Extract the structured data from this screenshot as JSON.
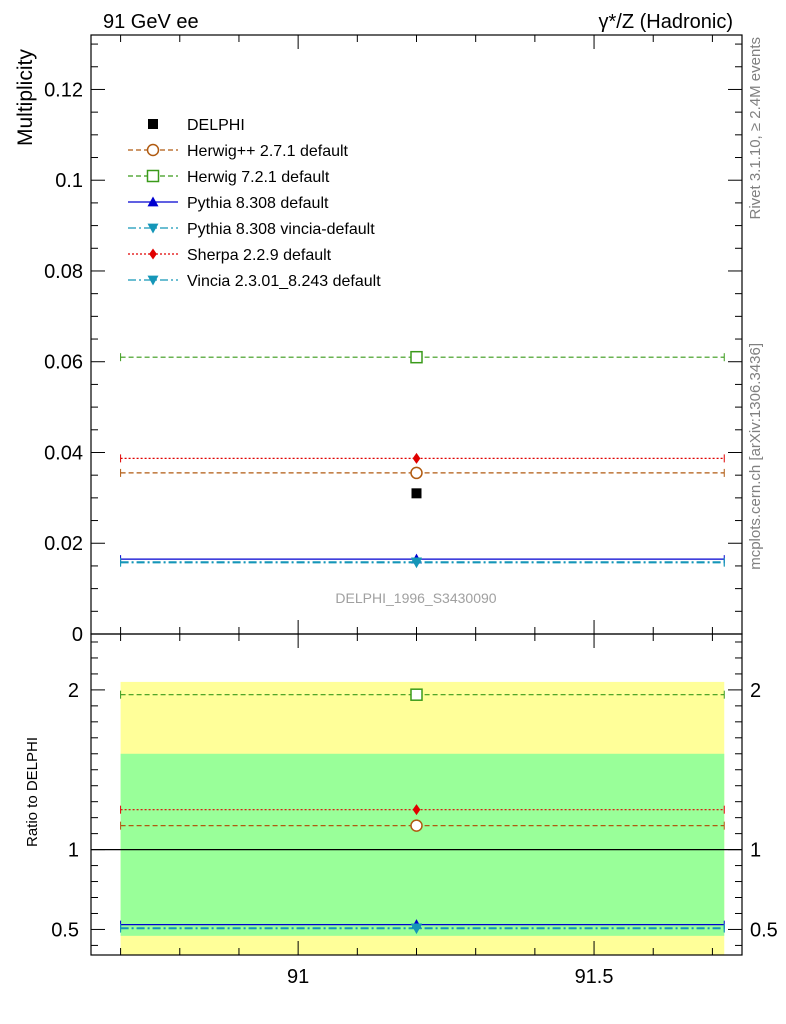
{
  "chart_data": {
    "type": "scatter",
    "title_left": "91 GeV ee",
    "title_right": "γ*/Z (Hadronic)",
    "ylabel": "Multiplicity",
    "ratio_ylabel": "Ratio to DELPHI",
    "analysis_label": "DELPHI_1996_S3430090",
    "side_label_top": "Rivet 3.1.10, ≥ 2.4M events",
    "side_label_bottom": "mcplots.cern.ch [arXiv:1306.3436]",
    "xlim": [
      90.65,
      91.75
    ],
    "bin": [
      90.7,
      91.72
    ],
    "point_x": 91.2,
    "x_ticks": [
      "91",
      "91.5"
    ],
    "x_tick_values": [
      91,
      91.5
    ],
    "main": {
      "ylim": [
        0,
        0.132
      ],
      "y_ticks": [
        "0",
        "0.02",
        "0.04",
        "0.06",
        "0.08",
        "0.1",
        "0.12"
      ],
      "y_tick_values": [
        0,
        0.02,
        0.04,
        0.06,
        0.08,
        0.1,
        0.12
      ]
    },
    "ratio": {
      "ylim": [
        0.34,
        2.35
      ],
      "y_ticks": [
        "0.5",
        "1",
        "2"
      ],
      "y_tick_values": [
        0.5,
        1,
        2
      ],
      "band_inner": [
        0.46,
        1.6
      ],
      "band_outer": [
        0.34,
        2.05
      ]
    },
    "data": {
      "name": "DELPHI",
      "value": 0.031,
      "color": "#000000"
    },
    "series": [
      {
        "name": "Herwig++ 2.7.1 default",
        "value": 0.0355,
        "ratio": 1.15,
        "color": "#b05a10",
        "marker": "circle-open",
        "dash": "5,3"
      },
      {
        "name": "Herwig 7.2.1 default",
        "value": 0.061,
        "ratio": 1.97,
        "color": "#3a9a1a",
        "marker": "square-open",
        "dash": "5,3"
      },
      {
        "name": "Pythia 8.308 default",
        "value": 0.0165,
        "ratio": 0.53,
        "color": "#0000d0",
        "marker": "triangle-up",
        "dash": ""
      },
      {
        "name": "Pythia 8.308 vincia-default",
        "value": 0.0157,
        "ratio": 0.505,
        "color": "#1596b8",
        "marker": "triangle-down",
        "dash": "8,3,2,3"
      },
      {
        "name": "Sherpa 2.2.9 default",
        "value": 0.0387,
        "ratio": 1.25,
        "color": "#e00000",
        "marker": "diamond",
        "dash": "2,2"
      },
      {
        "name": "Vincia 2.3.01_8.243 default",
        "value": 0.0159,
        "ratio": 0.51,
        "color": "#1596b8",
        "marker": "triangle-down",
        "dash": "8,3,2,3"
      }
    ],
    "colors": {
      "band_outer": "#ffff99",
      "band_inner": "#99ff99"
    }
  }
}
